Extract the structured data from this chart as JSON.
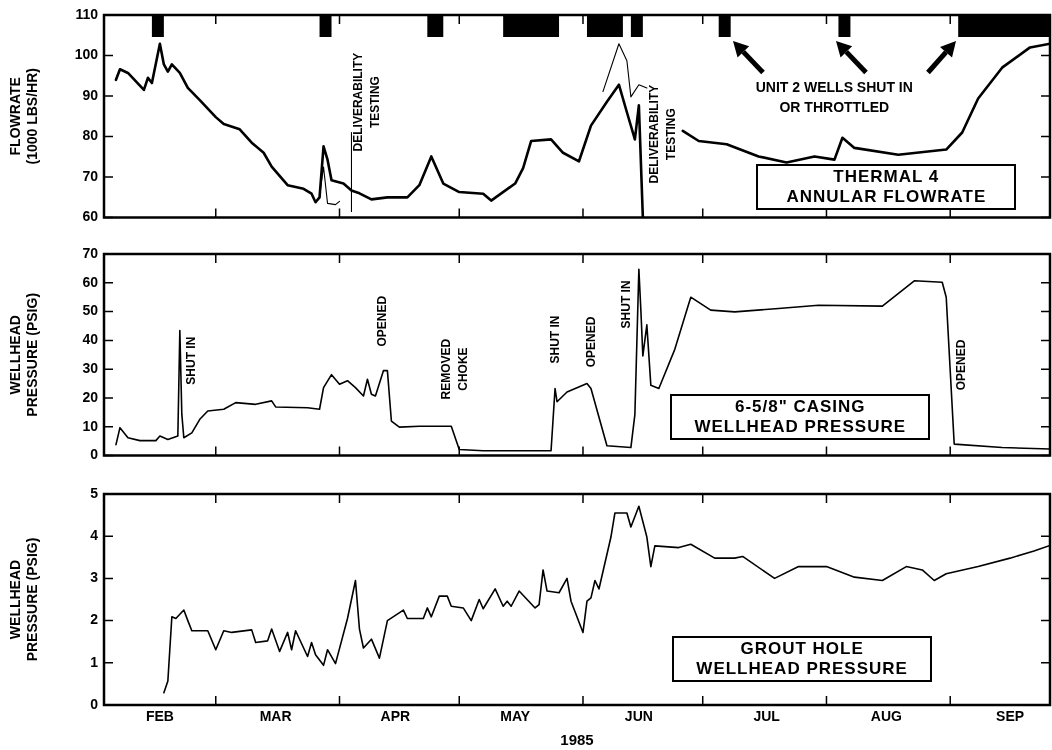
{
  "chart_data": [
    {
      "type": "line",
      "title": "THERMAL 4\nANNULAR FLOWRATE",
      "ylabel": "FLOWRATE\n(1000 LBS/HR)",
      "tick_labels": "y",
      "xlim": [
        "1985-02-01",
        "1985-09-26"
      ],
      "xticks": [
        {
          "value": "1985-03-01",
          "label": null
        },
        {
          "value": "1985-04-01",
          "label": null
        },
        {
          "value": "1985-05-01",
          "label": null
        },
        {
          "value": "1985-06-01",
          "label": null
        },
        {
          "value": "1985-07-01",
          "label": null
        },
        {
          "value": "1985-08-01",
          "label": null
        },
        {
          "value": "1985-09-01",
          "label": null
        }
      ],
      "ylim": [
        60,
        110
      ],
      "yticks": [
        60,
        70,
        80,
        90,
        100,
        110
      ],
      "series": [
        {
          "color": "#000000",
          "x": [
            "1985-02-04",
            "1985-02-05",
            "1985-02-07",
            "1985-02-11",
            "1985-02-12",
            "1985-02-13",
            "1985-02-15",
            "1985-02-16",
            "1985-02-17",
            "1985-02-18",
            "1985-02-20",
            "1985-02-22",
            "1985-02-25",
            "1985-03-01",
            "1985-03-03",
            "1985-03-07",
            "1985-03-10",
            "1985-03-13",
            "1985-03-15",
            "1985-03-19",
            "1985-03-23",
            "1985-03-25",
            "1985-03-26",
            "1985-03-27",
            "1985-03-28",
            "1985-03-29",
            "1985-03-30",
            "1985-04-02",
            "1985-04-04",
            "1985-04-06",
            "1985-04-09",
            "1985-04-13",
            "1985-04-18",
            "1985-04-21",
            "1985-04-24",
            "1985-04-27",
            "1985-05-01",
            "1985-05-07",
            "1985-05-09",
            "1985-05-15",
            "1985-05-17",
            "1985-05-19",
            "1985-05-24",
            "1985-05-27",
            "1985-05-31",
            "1985-06-03",
            "1985-06-07",
            "1985-06-10",
            "1985-06-12",
            "1985-06-14",
            "1985-06-15",
            "1985-06-16",
            "1985-06-20",
            "1985-06-26",
            "1985-06-30",
            "1985-07-07",
            "1985-07-15",
            "1985-07-22",
            "1985-07-29",
            "1985-08-03",
            "1985-08-05",
            "1985-08-08",
            "1985-08-19",
            "1985-08-31",
            "1985-09-04",
            "1985-09-08",
            "1985-09-14",
            "1985-09-21",
            "1985-09-26"
          ],
          "values": [
            94.0,
            96.6,
            95.7,
            91.5,
            94.5,
            93.2,
            102.9,
            97.8,
            96.0,
            97.8,
            95.7,
            92.0,
            89.0,
            84.8,
            83.1,
            81.8,
            78.5,
            76.0,
            72.6,
            68.0,
            67.1,
            65.9,
            63.8,
            65.0,
            77.6,
            74.3,
            69.2,
            68.4,
            66.7,
            66.0,
            64.5,
            65.0,
            65.0,
            68.0,
            75.1,
            68.4,
            66.3,
            65.9,
            64.2,
            68.4,
            72.2,
            78.9,
            79.3,
            76.0,
            73.9,
            82.7,
            88.6,
            92.8,
            86.0,
            79.3,
            87.7,
            60.0,
            null,
            81.4,
            78.9,
            78.1,
            75.1,
            73.6,
            75.1,
            74.3,
            79.7,
            77.2,
            75.5,
            76.8,
            81.0,
            89.4,
            97.0,
            102.0,
            102.9
          ]
        },
        {
          "color": "#000000",
          "x": [
            "1985-03-27",
            "1985-03-28",
            "1985-03-29",
            "1985-03-31",
            "1985-04-01",
            "1985-04-02",
            "1985-04-04",
            "1985-04-04",
            "1985-04-15",
            "1985-06-06",
            "1985-06-10",
            "1985-06-12",
            "1985-06-13",
            "1985-06-15",
            "1985-06-17"
          ],
          "values": [
            65.5,
            72.5,
            63.5,
            63.2,
            64.0,
            null,
            81.0,
            61.5,
            null,
            91.1,
            102.9,
            98.7,
            89.8,
            92.8,
            92.0
          ]
        }
      ],
      "bands": [
        {
          "axis": "x",
          "from": "1985-02-13",
          "to": "1985-02-16",
          "color": "#000000"
        },
        {
          "axis": "x",
          "from": "1985-03-27",
          "to": "1985-03-30",
          "color": "#000000"
        },
        {
          "axis": "x",
          "from": "1985-04-23",
          "to": "1985-04-27",
          "color": "#000000"
        },
        {
          "axis": "x",
          "from": "1985-05-12",
          "to": "1985-05-26",
          "color": "#000000"
        },
        {
          "axis": "x",
          "from": "1985-06-02",
          "to": "1985-06-11",
          "color": "#000000"
        },
        {
          "axis": "x",
          "from": "1985-06-13",
          "to": "1985-06-16",
          "color": "#000000"
        },
        {
          "axis": "x",
          "from": "1985-07-05",
          "to": "1985-07-08",
          "color": "#000000"
        },
        {
          "axis": "x",
          "from": "1985-08-04",
          "to": "1985-08-07",
          "color": "#000000"
        },
        {
          "axis": "x",
          "from": "1985-09-03",
          "to": "1985-09-26",
          "color": "#000000"
        }
      ],
      "annotations": [
        "DELIVERABILITY\nTESTING",
        "DELIVERABILITY\nTESTING",
        "UNIT 2 WELLS SHUT IN\nOR THROTTLED"
      ]
    },
    {
      "type": "line",
      "title": "6-5/8\" CASING\nWELLHEAD PRESSURE",
      "ylabel": "WELLHEAD\nPRESSURE (PSIG)",
      "tick_labels": "y",
      "xlim": [
        "1985-02-01",
        "1985-09-26"
      ],
      "xticks": [
        {
          "value": "1985-03-01",
          "label": null
        },
        {
          "value": "1985-04-01",
          "label": null
        },
        {
          "value": "1985-05-01",
          "label": null
        },
        {
          "value": "1985-06-01",
          "label": null
        },
        {
          "value": "1985-07-01",
          "label": null
        },
        {
          "value": "1985-08-01",
          "label": null
        },
        {
          "value": "1985-09-01",
          "label": null
        }
      ],
      "ylim": [
        0,
        70
      ],
      "yticks": [
        0,
        10,
        20,
        30,
        40,
        50,
        60,
        70
      ],
      "series": [
        {
          "color": "#000000",
          "x": [
            "1985-02-04",
            "1985-02-05",
            "1985-02-07",
            "1985-02-10",
            "1985-02-14",
            "1985-02-15",
            "1985-02-17",
            "1985-02-19T12:00",
            "1985-02-20",
            "1985-02-20T12:00",
            "1985-02-21",
            "1985-02-23",
            "1985-02-25",
            "1985-02-27",
            "1985-03-03",
            "1985-03-06",
            "1985-03-11",
            "1985-03-15",
            "1985-03-16",
            "1985-03-24",
            "1985-03-27",
            "1985-03-28",
            "1985-03-30",
            "1985-04-01",
            "1985-04-03",
            "1985-04-05",
            "1985-04-07",
            "1985-04-08",
            "1985-04-09",
            "1985-04-10",
            "1985-04-12",
            "1985-04-13",
            "1985-04-14",
            "1985-04-16",
            "1985-04-21",
            "1985-04-29",
            "1985-05-01",
            "1985-05-07",
            "1985-05-24",
            "1985-05-25",
            "1985-05-25T12:00",
            "1985-05-28",
            "1985-06-02",
            "1985-06-03",
            "1985-06-07",
            "1985-06-13",
            "1985-06-14",
            "1985-06-15",
            "1985-06-15T12:00",
            "1985-06-16",
            "1985-06-17",
            "1985-06-18",
            "1985-06-20",
            "1985-06-24",
            "1985-06-28",
            "1985-07-03",
            "1985-07-09",
            "1985-07-20",
            "1985-07-30",
            "1985-08-15",
            "1985-08-23",
            "1985-08-30",
            "1985-08-31",
            "1985-09-02",
            "1985-09-14",
            "1985-09-26"
          ],
          "values": [
            3.8,
            9.7,
            6.2,
            5.2,
            5.2,
            6.8,
            5.6,
            6.8,
            43.4,
            14.3,
            6.2,
            7.9,
            12.6,
            15.5,
            16.1,
            18.4,
            17.8,
            19.0,
            16.9,
            16.6,
            16.1,
            23.6,
            28.1,
            24.8,
            26.0,
            23.6,
            20.7,
            26.5,
            21.3,
            20.7,
            29.5,
            29.5,
            12.0,
            9.9,
            10.2,
            10.2,
            2.1,
            1.7,
            1.7,
            23.3,
            18.7,
            22.1,
            25.0,
            23.3,
            3.4,
            2.8,
            14.2,
            64.7,
            50.5,
            34.6,
            45.4,
            24.4,
            23.3,
            36.9,
            55.0,
            50.5,
            49.9,
            51.1,
            52.2,
            51.9,
            60.7,
            60.2,
            55.0,
            4.0,
            2.8,
            2.3
          ]
        }
      ],
      "annotations": [
        "SHUT IN",
        "OPENED",
        "REMOVED\nCHOKE",
        "SHUT IN",
        "OPENED",
        "SHUT IN",
        "OPENED"
      ]
    },
    {
      "type": "line",
      "title": "GROUT HOLE\nWELLHEAD PRESSURE",
      "ylabel": "WELLHEAD\nPRESSURE (PSIG)",
      "xlabel": "1985",
      "xlim": [
        "1985-02-01",
        "1985-09-26"
      ],
      "xticks": [
        {
          "value": "1985-02-15",
          "label": "FEB"
        },
        {
          "value": "1985-03-01",
          "label": null
        },
        {
          "value": "1985-03-16",
          "label": "MAR"
        },
        {
          "value": "1985-04-01",
          "label": null
        },
        {
          "value": "1985-04-15",
          "label": "APR"
        },
        {
          "value": "1985-05-01",
          "label": null
        },
        {
          "value": "1985-05-15",
          "label": "MAY"
        },
        {
          "value": "1985-06-01",
          "label": null
        },
        {
          "value": "1985-06-15",
          "label": "JUN"
        },
        {
          "value": "1985-07-01",
          "label": null
        },
        {
          "value": "1985-07-17",
          "label": "JUL"
        },
        {
          "value": "1985-08-01",
          "label": null
        },
        {
          "value": "1985-08-16",
          "label": "AUG"
        },
        {
          "value": "1985-09-01",
          "label": null
        },
        {
          "value": "1985-09-16",
          "label": "SEP"
        }
      ],
      "ylim": [
        0,
        5
      ],
      "yticks": [
        0,
        1,
        2,
        3,
        4,
        5
      ],
      "series": [
        {
          "color": "#000000",
          "x": [
            "1985-02-16",
            "1985-02-17",
            "1985-02-18",
            "1985-02-19",
            "1985-02-21",
            "1985-02-22",
            "1985-02-23",
            "1985-02-27",
            "1985-03-01",
            "1985-03-03",
            "1985-03-05",
            "1985-03-10",
            "1985-03-11",
            "1985-03-14",
            "1985-03-15",
            "1985-03-17",
            "1985-03-19",
            "1985-03-20",
            "1985-03-21",
            "1985-03-24",
            "1985-03-25",
            "1985-03-26",
            "1985-03-28",
            "1985-03-29",
            "1985-03-31",
            "1985-04-03",
            "1985-04-05",
            "1985-04-06",
            "1985-04-07",
            "1985-04-09",
            "1985-04-11",
            "1985-04-13",
            "1985-04-17",
            "1985-04-18",
            "1985-04-22",
            "1985-04-23",
            "1985-04-24",
            "1985-04-26",
            "1985-04-28",
            "1985-04-29",
            "1985-05-02",
            "1985-05-04",
            "1985-05-06",
            "1985-05-07",
            "1985-05-10",
            "1985-05-12",
            "1985-05-13",
            "1985-05-14",
            "1985-05-16",
            "1985-05-18",
            "1985-05-20",
            "1985-05-21",
            "1985-05-22",
            "1985-05-23",
            "1985-05-26",
            "1985-05-28",
            "1985-05-29",
            "1985-06-01",
            "1985-06-02",
            "1985-06-03",
            "1985-06-04",
            "1985-06-05",
            "1985-06-08",
            "1985-06-09",
            "1985-06-12",
            "1985-06-13",
            "1985-06-15",
            "1985-06-17",
            "1985-06-18",
            "1985-06-19",
            "1985-06-25",
            "1985-06-28",
            "1985-07-04",
            "1985-07-09",
            "1985-07-11",
            "1985-07-19",
            "1985-07-25",
            "1985-08-01",
            "1985-08-08",
            "1985-08-15",
            "1985-08-21",
            "1985-08-25",
            "1985-08-28",
            "1985-08-31",
            "1985-09-08",
            "1985-09-16",
            "1985-09-22",
            "1985-09-26"
          ],
          "values": [
            0.29,
            0.57,
            2.09,
            2.05,
            2.25,
            2.0,
            1.76,
            1.76,
            1.31,
            1.76,
            1.72,
            1.78,
            1.48,
            1.52,
            1.8,
            1.27,
            1.72,
            1.31,
            1.76,
            1.15,
            1.48,
            1.19,
            0.94,
            1.31,
            0.98,
            2.05,
            2.95,
            1.8,
            1.35,
            1.56,
            1.11,
            2.0,
            2.25,
            2.05,
            2.05,
            2.3,
            2.09,
            2.58,
            2.58,
            2.34,
            2.3,
            2.0,
            2.5,
            2.28,
            2.75,
            2.34,
            2.46,
            2.34,
            2.7,
            2.5,
            2.3,
            2.38,
            3.2,
            2.7,
            2.66,
            3.0,
            2.46,
            1.72,
            2.46,
            2.54,
            2.95,
            2.75,
            3.98,
            4.55,
            4.55,
            4.22,
            4.71,
            3.98,
            3.28,
            3.77,
            3.73,
            3.81,
            3.48,
            3.48,
            3.52,
            3.0,
            3.28,
            3.28,
            3.03,
            2.95,
            3.28,
            3.2,
            2.95,
            3.11,
            3.28,
            3.48,
            3.65,
            3.78
          ]
        }
      ]
    }
  ]
}
